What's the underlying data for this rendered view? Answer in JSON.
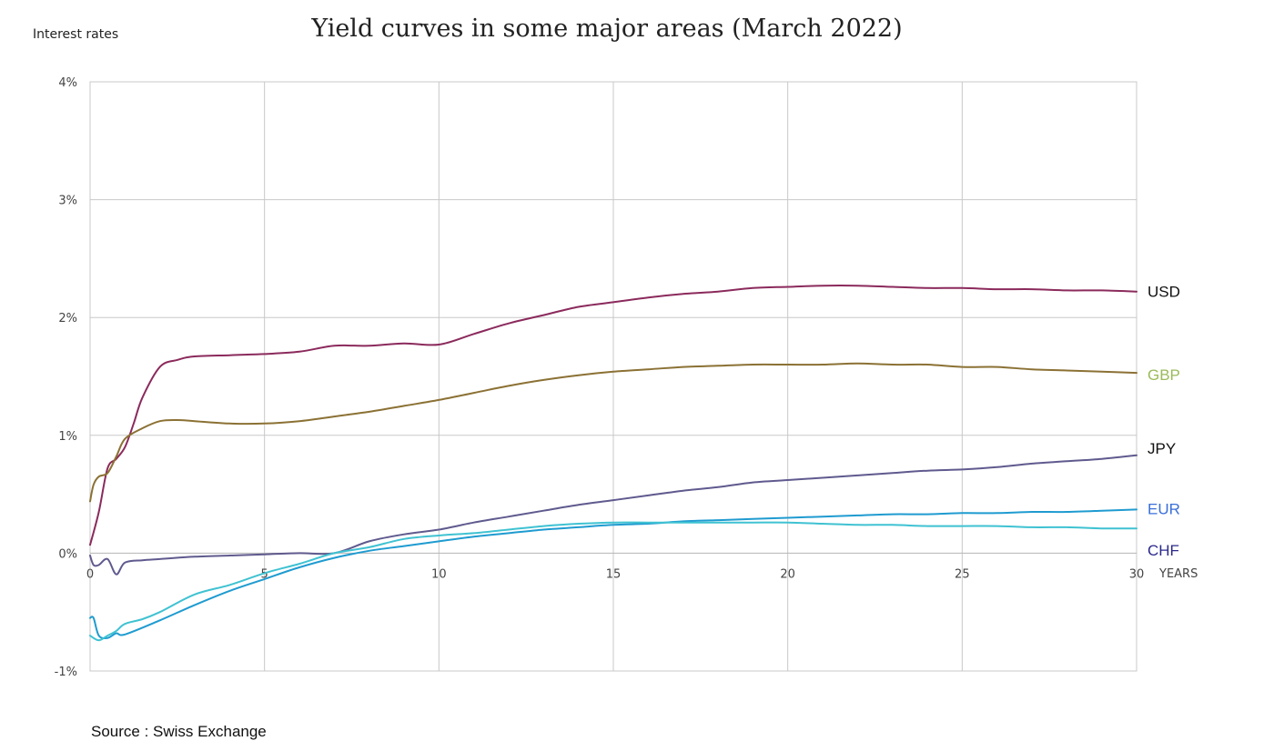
{
  "chart_data": {
    "type": "line",
    "title": "Yield curves in some major areas (March 2022)",
    "ylabel": "Interest rates",
    "xlabel": "YEARS",
    "xlim": [
      0,
      30
    ],
    "ylim": [
      -1,
      4
    ],
    "x_ticks": [
      "0",
      "5",
      "10",
      "15",
      "20",
      "25",
      "30"
    ],
    "y_ticks": [
      "-1%",
      "0%",
      "1%",
      "2%",
      "3%",
      "4%"
    ],
    "grid": true,
    "source": "Source : Swiss Exchange",
    "series": [
      {
        "name": "USD",
        "color": "#8b2a5c",
        "label_color": "#111111",
        "x": [
          0,
          0.25,
          0.5,
          0.75,
          1,
          1.25,
          1.5,
          2,
          2.5,
          3,
          4,
          5,
          6,
          7,
          8,
          9,
          10,
          11,
          12,
          13,
          14,
          15,
          16,
          17,
          18,
          19,
          20,
          21,
          22,
          23,
          24,
          25,
          26,
          27,
          28,
          29,
          30
        ],
        "y": [
          0.07,
          0.35,
          0.72,
          0.8,
          0.9,
          1.1,
          1.32,
          1.58,
          1.64,
          1.67,
          1.68,
          1.69,
          1.71,
          1.76,
          1.76,
          1.78,
          1.77,
          1.86,
          1.95,
          2.02,
          2.09,
          2.13,
          2.17,
          2.2,
          2.22,
          2.25,
          2.26,
          2.27,
          2.27,
          2.26,
          2.25,
          2.25,
          2.24,
          2.24,
          2.23,
          2.23,
          2.22
        ]
      },
      {
        "name": "GBP",
        "color": "#8b7134",
        "label_color": "#9bbb59",
        "x": [
          0,
          0.1,
          0.25,
          0.5,
          0.75,
          1,
          1.5,
          2,
          2.5,
          3,
          4,
          5,
          6,
          7,
          8,
          9,
          10,
          11,
          12,
          13,
          14,
          15,
          16,
          17,
          18,
          19,
          20,
          21,
          22,
          23,
          24,
          25,
          26,
          27,
          28,
          29,
          30
        ],
        "y": [
          0.44,
          0.58,
          0.65,
          0.68,
          0.82,
          0.97,
          1.06,
          1.12,
          1.13,
          1.12,
          1.1,
          1.1,
          1.12,
          1.16,
          1.2,
          1.25,
          1.3,
          1.36,
          1.42,
          1.47,
          1.51,
          1.54,
          1.56,
          1.58,
          1.59,
          1.6,
          1.6,
          1.6,
          1.61,
          1.6,
          1.6,
          1.58,
          1.58,
          1.56,
          1.55,
          1.54,
          1.53
        ]
      },
      {
        "name": "JPY",
        "color": "#5f5a8e",
        "label_color": "#111111",
        "x": [
          0,
          0.1,
          0.25,
          0.5,
          0.75,
          1,
          1.5,
          2,
          3,
          4,
          5,
          6,
          7,
          8,
          9,
          10,
          11,
          12,
          13,
          14,
          15,
          16,
          17,
          18,
          19,
          20,
          21,
          22,
          23,
          24,
          25,
          26,
          27,
          28,
          29,
          30
        ],
        "y": [
          -0.02,
          -0.1,
          -0.1,
          -0.05,
          -0.18,
          -0.08,
          -0.06,
          -0.05,
          -0.03,
          -0.02,
          -0.01,
          0.0,
          0.0,
          0.1,
          0.16,
          0.2,
          0.26,
          0.31,
          0.36,
          0.41,
          0.45,
          0.49,
          0.53,
          0.56,
          0.6,
          0.62,
          0.64,
          0.66,
          0.68,
          0.7,
          0.71,
          0.73,
          0.76,
          0.78,
          0.8,
          0.83
        ]
      },
      {
        "name": "EUR",
        "color": "#1f9bd0",
        "label_color": "#3a6fd8",
        "x": [
          0,
          0.1,
          0.25,
          0.5,
          0.75,
          1,
          2,
          3,
          4,
          5,
          6,
          7,
          8,
          9,
          10,
          11,
          12,
          13,
          14,
          15,
          16,
          17,
          18,
          19,
          20,
          21,
          22,
          23,
          24,
          25,
          26,
          27,
          28,
          29,
          30
        ],
        "y": [
          -0.55,
          -0.55,
          -0.7,
          -0.72,
          -0.68,
          -0.69,
          -0.57,
          -0.44,
          -0.32,
          -0.22,
          -0.12,
          -0.04,
          0.02,
          0.06,
          0.1,
          0.14,
          0.17,
          0.2,
          0.22,
          0.24,
          0.25,
          0.27,
          0.28,
          0.29,
          0.3,
          0.31,
          0.32,
          0.33,
          0.33,
          0.34,
          0.34,
          0.35,
          0.35,
          0.36,
          0.37
        ]
      },
      {
        "name": "CHF",
        "color": "#3fc2d2",
        "label_color": "#2d2a8c",
        "x": [
          0,
          0.25,
          0.5,
          0.75,
          1,
          1.5,
          2,
          3,
          4,
          5,
          6,
          7,
          8,
          9,
          10,
          11,
          12,
          13,
          14,
          15,
          16,
          17,
          18,
          19,
          20,
          21,
          22,
          23,
          24,
          25,
          26,
          27,
          28,
          29,
          30
        ],
        "y": [
          -0.7,
          -0.74,
          -0.7,
          -0.66,
          -0.6,
          -0.56,
          -0.5,
          -0.35,
          -0.27,
          -0.17,
          -0.09,
          0.0,
          0.05,
          0.12,
          0.15,
          0.17,
          0.2,
          0.23,
          0.25,
          0.26,
          0.26,
          0.26,
          0.26,
          0.26,
          0.26,
          0.25,
          0.24,
          0.24,
          0.23,
          0.23,
          0.23,
          0.22,
          0.22,
          0.21,
          0.21
        ]
      }
    ]
  }
}
